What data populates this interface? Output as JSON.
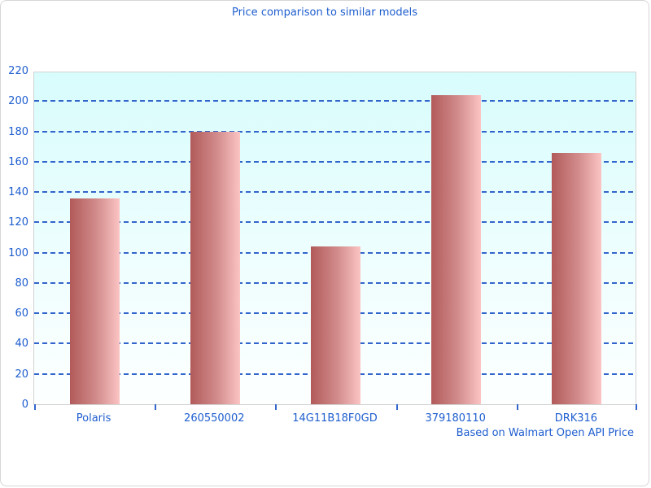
{
  "title": "Price comparison to similar models",
  "footer": "Based on Walmart Open API Price",
  "colors": {
    "label_blue": "#1e5ecf",
    "gridline_blue": "#3366cc",
    "bar_gradient_left": "#b25a5a",
    "bar_gradient_right": "#fcc4c4",
    "plot_bg_top": "#d8fcfc",
    "plot_bg_bottom": "#fdffff",
    "plot_border": "#d2d2d2"
  },
  "chart_data": {
    "type": "bar",
    "categories": [
      "Polaris",
      "260550002",
      "14G11B18F0GD",
      "379180110",
      "DRK316"
    ],
    "values": [
      136,
      180,
      104,
      204,
      166
    ],
    "title": "Price comparison to similar models",
    "xlabel": "",
    "ylabel": "",
    "ylim": [
      0,
      220
    ],
    "ytick_step": 20,
    "yticks": [
      0,
      20,
      40,
      60,
      80,
      100,
      120,
      140,
      160,
      180,
      200,
      220
    ],
    "grid": "horizontal-dashed",
    "legend": "none",
    "annotation": "Based on Walmart Open API Price"
  }
}
